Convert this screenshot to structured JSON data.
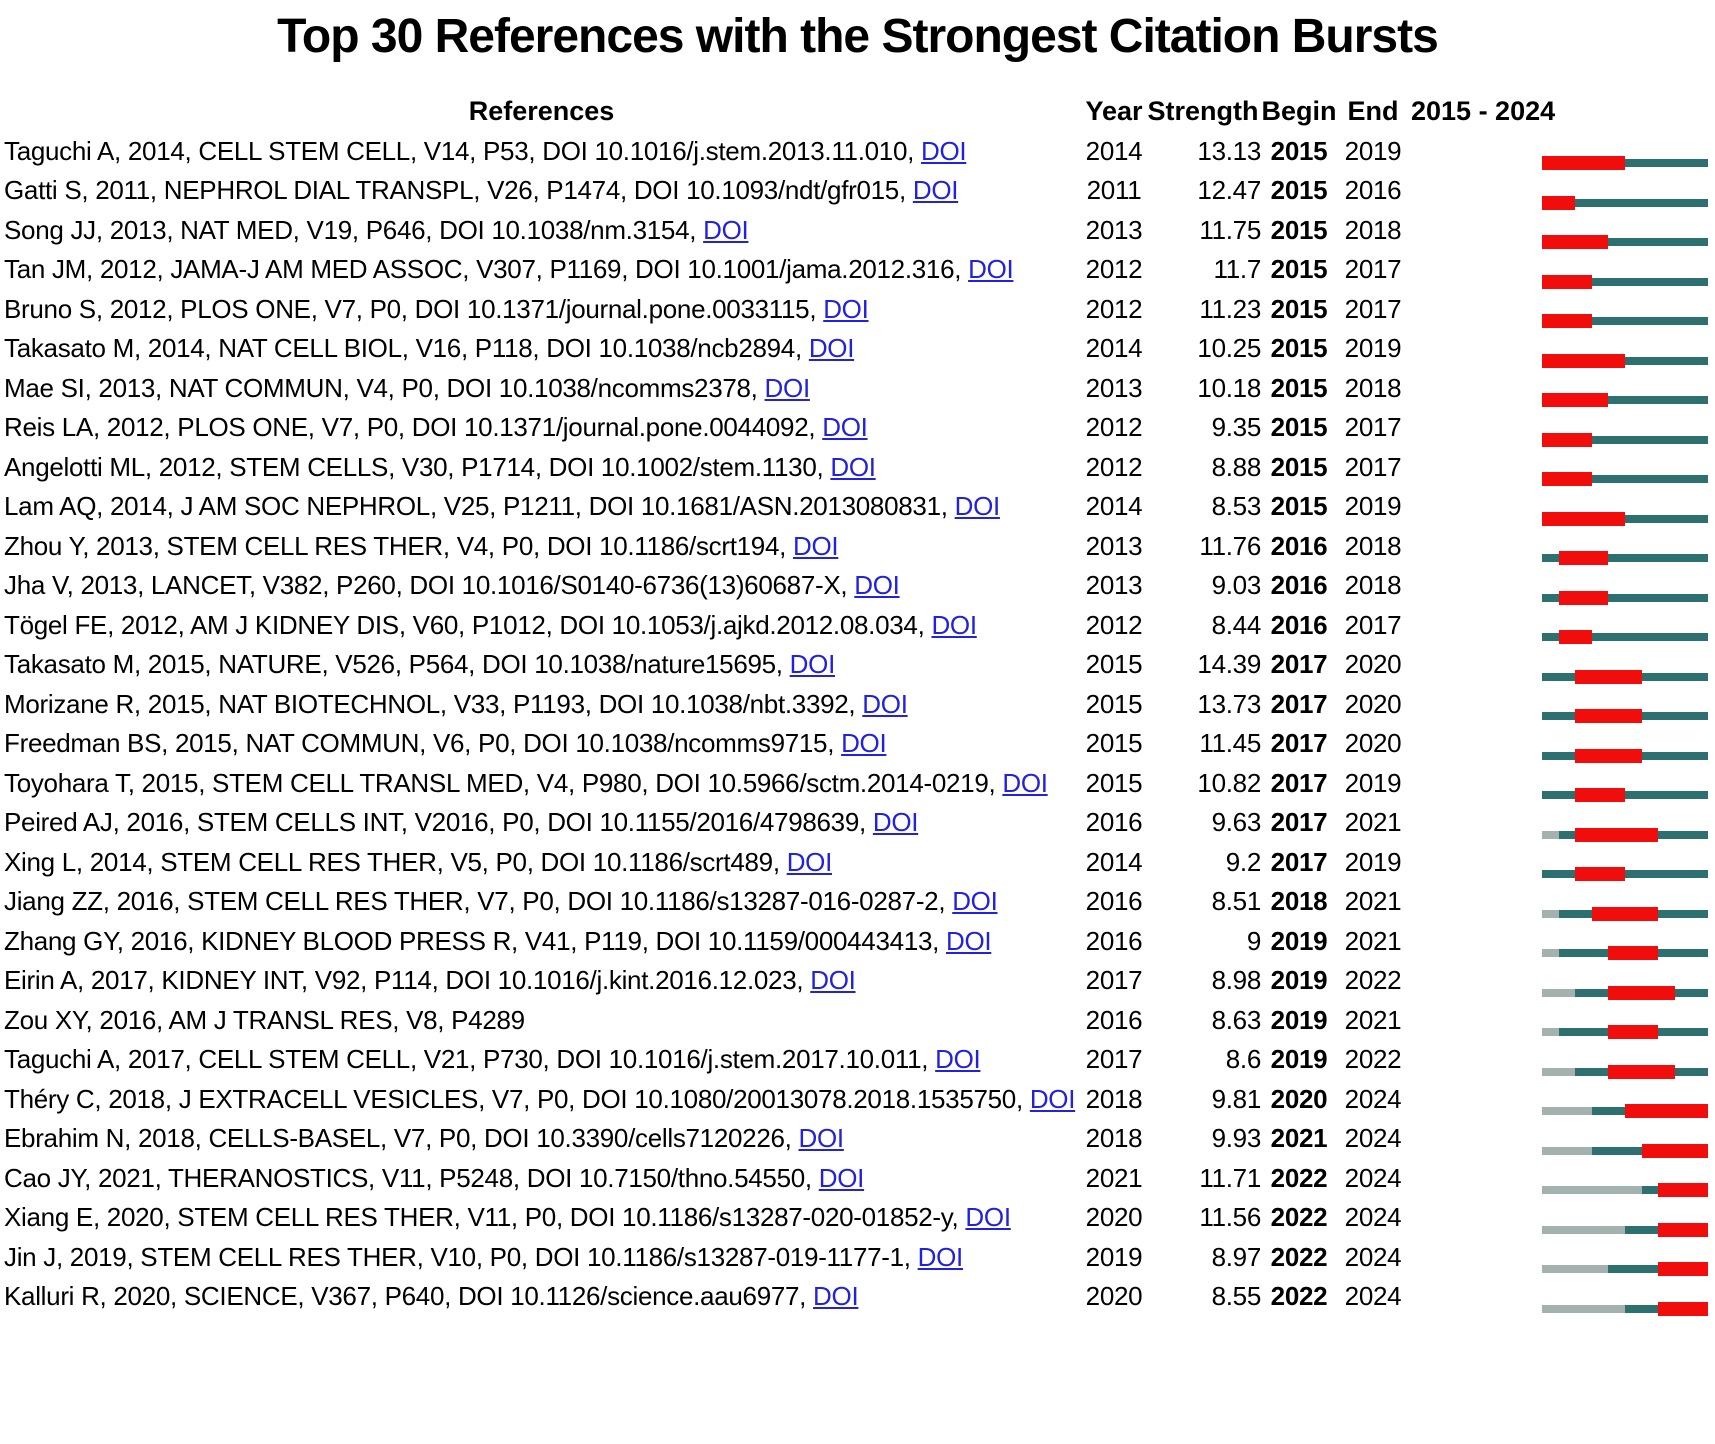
{
  "title": "Top 30 References with the Strongest Citation Bursts",
  "header": {
    "references": "References",
    "year": "Year",
    "strength": "Strength",
    "begin": "Begin",
    "end": "End",
    "range": "2015 - 2024"
  },
  "doi_label": "DOI",
  "colors": {
    "burst": "#F20D0D",
    "active": "#2E6F70",
    "inactive": "#A3B2AF",
    "link": "#2222DD",
    "text": "#000000"
  },
  "chart_data": {
    "type": "table",
    "title": "Top 30 References with the Strongest Citation Bursts",
    "timeline_start": 2015,
    "timeline_end": 2024,
    "legend": {
      "red_segment": "citation burst period (Begin to End)",
      "teal_segment": "years published, outside burst",
      "gray_segment": "years before publication"
    },
    "columns": [
      "References",
      "Year",
      "Strength",
      "Begin",
      "End",
      "2015 - 2024"
    ],
    "rows": [
      {
        "ref": "Taguchi A, 2014, CELL STEM CELL, V14, P53, DOI 10.1016/j.stem.2013.11.010,",
        "doi": true,
        "year": "2014",
        "strength": "13.13",
        "begin": "2015",
        "end": "2019",
        "segments": {
          "before_pub": 0,
          "pre_burst": 0,
          "burst": 5,
          "post_burst": 5
        }
      },
      {
        "ref": "Gatti S, 2011, NEPHROL DIAL TRANSPL, V26, P1474, DOI 10.1093/ndt/gfr015,",
        "doi": true,
        "year": "2011",
        "strength": "12.47",
        "begin": "2015",
        "end": "2016",
        "segments": {
          "before_pub": 0,
          "pre_burst": 0,
          "burst": 2,
          "post_burst": 8
        }
      },
      {
        "ref": "Song JJ, 2013, NAT MED, V19, P646, DOI 10.1038/nm.3154,",
        "doi": true,
        "year": "2013",
        "strength": "11.75",
        "begin": "2015",
        "end": "2018",
        "segments": {
          "before_pub": 0,
          "pre_burst": 0,
          "burst": 4,
          "post_burst": 6
        }
      },
      {
        "ref": "Tan JM, 2012, JAMA-J AM MED ASSOC, V307, P1169, DOI 10.1001/jama.2012.316,",
        "doi": true,
        "year": "2012",
        "strength": "11.7",
        "begin": "2015",
        "end": "2017",
        "segments": {
          "before_pub": 0,
          "pre_burst": 0,
          "burst": 3,
          "post_burst": 7
        }
      },
      {
        "ref": "Bruno S, 2012, PLOS ONE, V7, P0, DOI 10.1371/journal.pone.0033115,",
        "doi": true,
        "year": "2012",
        "strength": "11.23",
        "begin": "2015",
        "end": "2017",
        "segments": {
          "before_pub": 0,
          "pre_burst": 0,
          "burst": 3,
          "post_burst": 7
        }
      },
      {
        "ref": "Takasato M, 2014, NAT CELL BIOL, V16, P118, DOI 10.1038/ncb2894,",
        "doi": true,
        "year": "2014",
        "strength": "10.25",
        "begin": "2015",
        "end": "2019",
        "segments": {
          "before_pub": 0,
          "pre_burst": 0,
          "burst": 5,
          "post_burst": 5
        }
      },
      {
        "ref": "Mae SI, 2013, NAT COMMUN, V4, P0, DOI 10.1038/ncomms2378,",
        "doi": true,
        "year": "2013",
        "strength": "10.18",
        "begin": "2015",
        "end": "2018",
        "segments": {
          "before_pub": 0,
          "pre_burst": 0,
          "burst": 4,
          "post_burst": 6
        }
      },
      {
        "ref": "Reis LA, 2012, PLOS ONE, V7, P0, DOI 10.1371/journal.pone.0044092,",
        "doi": true,
        "year": "2012",
        "strength": "9.35",
        "begin": "2015",
        "end": "2017",
        "segments": {
          "before_pub": 0,
          "pre_burst": 0,
          "burst": 3,
          "post_burst": 7
        }
      },
      {
        "ref": "Angelotti ML, 2012, STEM CELLS, V30, P1714, DOI 10.1002/stem.1130,",
        "doi": true,
        "year": "2012",
        "strength": "8.88",
        "begin": "2015",
        "end": "2017",
        "segments": {
          "before_pub": 0,
          "pre_burst": 0,
          "burst": 3,
          "post_burst": 7
        }
      },
      {
        "ref": "Lam AQ, 2014, J AM SOC NEPHROL, V25, P1211, DOI 10.1681/ASN.2013080831,",
        "doi": true,
        "year": "2014",
        "strength": "8.53",
        "begin": "2015",
        "end": "2019",
        "segments": {
          "before_pub": 0,
          "pre_burst": 0,
          "burst": 5,
          "post_burst": 5
        }
      },
      {
        "ref": "Zhou Y, 2013, STEM CELL RES THER, V4, P0, DOI 10.1186/scrt194,",
        "doi": true,
        "year": "2013",
        "strength": "11.76",
        "begin": "2016",
        "end": "2018",
        "segments": {
          "before_pub": 0,
          "pre_burst": 1,
          "burst": 3,
          "post_burst": 6
        }
      },
      {
        "ref": "Jha V, 2013, LANCET, V382, P260, DOI 10.1016/S0140-6736(13)60687-X,",
        "doi": true,
        "year": "2013",
        "strength": "9.03",
        "begin": "2016",
        "end": "2018",
        "segments": {
          "before_pub": 0,
          "pre_burst": 1,
          "burst": 3,
          "post_burst": 6
        }
      },
      {
        "ref": "Tögel FE, 2012, AM J KIDNEY DIS, V60, P1012, DOI 10.1053/j.ajkd.2012.08.034,",
        "doi": true,
        "year": "2012",
        "strength": "8.44",
        "begin": "2016",
        "end": "2017",
        "segments": {
          "before_pub": 0,
          "pre_burst": 1,
          "burst": 2,
          "post_burst": 7
        }
      },
      {
        "ref": "Takasato M, 2015, NATURE, V526, P564, DOI 10.1038/nature15695,",
        "doi": true,
        "year": "2015",
        "strength": "14.39",
        "begin": "2017",
        "end": "2020",
        "segments": {
          "before_pub": 0,
          "pre_burst": 2,
          "burst": 4,
          "post_burst": 4
        }
      },
      {
        "ref": "Morizane R, 2015, NAT BIOTECHNOL, V33, P1193, DOI 10.1038/nbt.3392,",
        "doi": true,
        "year": "2015",
        "strength": "13.73",
        "begin": "2017",
        "end": "2020",
        "segments": {
          "before_pub": 0,
          "pre_burst": 2,
          "burst": 4,
          "post_burst": 4
        }
      },
      {
        "ref": "Freedman BS, 2015, NAT COMMUN, V6, P0, DOI 10.1038/ncomms9715,",
        "doi": true,
        "year": "2015",
        "strength": "11.45",
        "begin": "2017",
        "end": "2020",
        "segments": {
          "before_pub": 0,
          "pre_burst": 2,
          "burst": 4,
          "post_burst": 4
        }
      },
      {
        "ref": "Toyohara T, 2015, STEM CELL TRANSL MED, V4, P980, DOI 10.5966/sctm.2014-0219,",
        "doi": true,
        "year": "2015",
        "strength": "10.82",
        "begin": "2017",
        "end": "2019",
        "segments": {
          "before_pub": 0,
          "pre_burst": 2,
          "burst": 3,
          "post_burst": 5
        }
      },
      {
        "ref": "Peired AJ, 2016, STEM CELLS INT, V2016, P0, DOI 10.1155/2016/4798639,",
        "doi": true,
        "year": "2016",
        "strength": "9.63",
        "begin": "2017",
        "end": "2021",
        "segments": {
          "before_pub": 1,
          "pre_burst": 1,
          "burst": 5,
          "post_burst": 3
        }
      },
      {
        "ref": "Xing L, 2014, STEM CELL RES THER, V5, P0, DOI 10.1186/scrt489,",
        "doi": true,
        "year": "2014",
        "strength": "9.2",
        "begin": "2017",
        "end": "2019",
        "segments": {
          "before_pub": 0,
          "pre_burst": 2,
          "burst": 3,
          "post_burst": 5
        }
      },
      {
        "ref": "Jiang ZZ, 2016, STEM CELL RES THER, V7, P0, DOI 10.1186/s13287-016-0287-2,",
        "doi": true,
        "year": "2016",
        "strength": "8.51",
        "begin": "2018",
        "end": "2021",
        "segments": {
          "before_pub": 1,
          "pre_burst": 2,
          "burst": 4,
          "post_burst": 3
        }
      },
      {
        "ref": "Zhang GY, 2016, KIDNEY BLOOD PRESS R, V41, P119, DOI 10.1159/000443413,",
        "doi": true,
        "year": "2016",
        "strength": "9",
        "begin": "2019",
        "end": "2021",
        "segments": {
          "before_pub": 1,
          "pre_burst": 3,
          "burst": 3,
          "post_burst": 3
        }
      },
      {
        "ref": "Eirin A, 2017, KIDNEY INT, V92, P114, DOI 10.1016/j.kint.2016.12.023,",
        "doi": true,
        "year": "2017",
        "strength": "8.98",
        "begin": "2019",
        "end": "2022",
        "segments": {
          "before_pub": 2,
          "pre_burst": 2,
          "burst": 4,
          "post_burst": 2
        }
      },
      {
        "ref": "Zou XY, 2016, AM J TRANSL RES, V8, P4289",
        "doi": false,
        "year": "2016",
        "strength": "8.63",
        "begin": "2019",
        "end": "2021",
        "segments": {
          "before_pub": 1,
          "pre_burst": 3,
          "burst": 3,
          "post_burst": 3
        }
      },
      {
        "ref": "Taguchi A, 2017, CELL STEM CELL, V21, P730, DOI 10.1016/j.stem.2017.10.011,",
        "doi": true,
        "year": "2017",
        "strength": "8.6",
        "begin": "2019",
        "end": "2022",
        "segments": {
          "before_pub": 2,
          "pre_burst": 2,
          "burst": 4,
          "post_burst": 2
        }
      },
      {
        "ref": "Théry C, 2018, J EXTRACELL VESICLES, V7, P0, DOI 10.1080/20013078.2018.1535750,",
        "doi": true,
        "year": "2018",
        "strength": "9.81",
        "begin": "2020",
        "end": "2024",
        "segments": {
          "before_pub": 3,
          "pre_burst": 2,
          "burst": 5,
          "post_burst": 0
        }
      },
      {
        "ref": "Ebrahim N, 2018, CELLS-BASEL, V7, P0, DOI 10.3390/cells7120226,",
        "doi": true,
        "year": "2018",
        "strength": "9.93",
        "begin": "2021",
        "end": "2024",
        "segments": {
          "before_pub": 3,
          "pre_burst": 3,
          "burst": 4,
          "post_burst": 0
        }
      },
      {
        "ref": "Cao JY, 2021, THERANOSTICS, V11, P5248, DOI 10.7150/thno.54550,",
        "doi": true,
        "year": "2021",
        "strength": "11.71",
        "begin": "2022",
        "end": "2024",
        "segments": {
          "before_pub": 6,
          "pre_burst": 1,
          "burst": 3,
          "post_burst": 0
        }
      },
      {
        "ref": "Xiang E, 2020, STEM CELL RES THER, V11, P0, DOI 10.1186/s13287-020-01852-y,",
        "doi": true,
        "year": "2020",
        "strength": "11.56",
        "begin": "2022",
        "end": "2024",
        "segments": {
          "before_pub": 5,
          "pre_burst": 2,
          "burst": 3,
          "post_burst": 0
        }
      },
      {
        "ref": "Jin J, 2019, STEM CELL RES THER, V10, P0, DOI 10.1186/s13287-019-1177-1,",
        "doi": true,
        "year": "2019",
        "strength": "8.97",
        "begin": "2022",
        "end": "2024",
        "segments": {
          "before_pub": 4,
          "pre_burst": 3,
          "burst": 3,
          "post_burst": 0
        }
      },
      {
        "ref": "Kalluri R, 2020, SCIENCE, V367, P640, DOI 10.1126/science.aau6977,",
        "doi": true,
        "year": "2020",
        "strength": "8.55",
        "begin": "2022",
        "end": "2024",
        "segments": {
          "before_pub": 5,
          "pre_burst": 2,
          "burst": 3,
          "post_burst": 0
        }
      }
    ]
  }
}
